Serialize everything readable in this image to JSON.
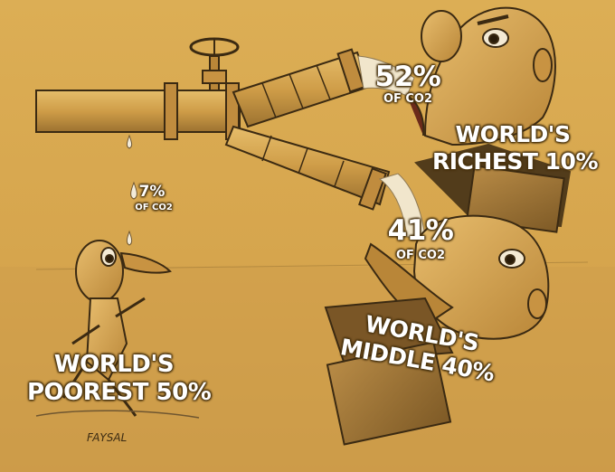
{
  "labels": {
    "richest": {
      "percent": "52%",
      "unit": "OF CO2",
      "group_line1": "WORLD'S",
      "group_line2": "RICHEST 10%"
    },
    "middle": {
      "percent": "41%",
      "unit": "OF CO2",
      "group_line1": "WORLD'S",
      "group_line2": "MIDDLE 40%"
    },
    "poorest": {
      "percent": "7%",
      "unit": "OF CO2",
      "group_line1": "WORLD'S",
      "group_line2": "POOREST 50%"
    }
  },
  "signature": "FAYSAL",
  "colors": {
    "background": "#d9a94e",
    "ink": "#3b2a12",
    "label": "#ffffff"
  }
}
